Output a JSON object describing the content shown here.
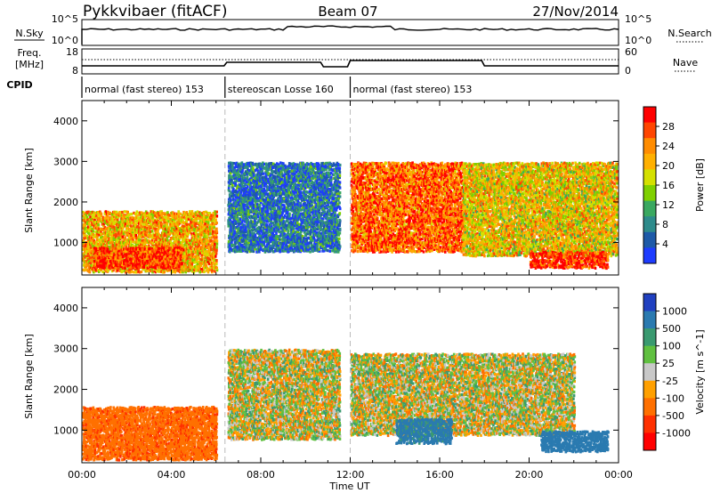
{
  "header": {
    "radar": "Pykkvibaer (fitACF)",
    "beam": "Beam 07",
    "date": "27/Nov/2014"
  },
  "status_panel": {
    "nsky_label": "N.Sky",
    "nsky_ticks": [
      "10^5",
      "10^0"
    ],
    "nsearch_label": "N.Search",
    "nsearch_ticks": [
      "10^5",
      "10^0"
    ],
    "freq_label_1": "Freq.",
    "freq_label_2": "[MHz]",
    "freq_ticks": [
      "18",
      "8"
    ],
    "nave_label": "Nave",
    "nave_ticks": [
      "60",
      "0"
    ],
    "cpid_label": "CPID",
    "cpid_segments": [
      {
        "label": "normal (fast stereo) 153",
        "start_hour": 0,
        "end_hour": 6.4
      },
      {
        "label": "stereoscan Losse 160",
        "start_hour": 6.4,
        "end_hour": 12.0
      },
      {
        "label": "normal (fast stereo) 153",
        "start_hour": 12.0,
        "end_hour": 24.0
      }
    ]
  },
  "colorbars": {
    "power": {
      "title": "Power [dB]",
      "ticks": [
        "28",
        "24",
        "20",
        "16",
        "12",
        "8",
        "4"
      ],
      "colors": [
        "#ff0000",
        "#ff4500",
        "#ff8c00",
        "#ffb000",
        "#d4e000",
        "#7fd000",
        "#3aa860",
        "#2e8b8b",
        "#1e5aa8",
        "#1e3cff"
      ]
    },
    "velocity": {
      "title": "Velocity [m s^-1]",
      "ticks": [
        "1000",
        "500",
        "100",
        "25",
        "-25",
        "-100",
        "-500",
        "-1000"
      ],
      "colors": [
        "#2040c0",
        "#2a7ab0",
        "#3a9a70",
        "#60c040",
        "#c8c8c8",
        "#ffa000",
        "#ff7000",
        "#ff3000",
        "#ff0000"
      ]
    }
  },
  "chart_data": [
    {
      "type": "heatmap",
      "name": "power",
      "ylabel": "Slant Range [km]",
      "yticks": [
        "4000",
        "3000",
        "2000",
        "1000"
      ],
      "ylim": [
        200,
        4500
      ],
      "xlim": [
        0,
        24
      ],
      "blobs": [
        {
          "t0": 0.0,
          "t1": 6.0,
          "r0": 300,
          "r1": 1800,
          "value": 20
        },
        {
          "t0": 0.5,
          "t1": 4.5,
          "r0": 400,
          "r1": 900,
          "value": 26
        },
        {
          "t0": 6.5,
          "t1": 11.5,
          "r0": 800,
          "r1": 3000,
          "value": 6
        },
        {
          "t0": 12.0,
          "t1": 17.0,
          "r0": 800,
          "r1": 3000,
          "value": 24
        },
        {
          "t0": 17.0,
          "t1": 23.9,
          "r0": 700,
          "r1": 3000,
          "value": 18
        },
        {
          "t0": 20.0,
          "t1": 23.5,
          "r0": 400,
          "r1": 800,
          "value": 27
        }
      ]
    },
    {
      "type": "heatmap",
      "name": "velocity",
      "xlabel": "Time UT",
      "ylabel": "Slant Range [km]",
      "yticks": [
        "4000",
        "3000",
        "2000",
        "1000"
      ],
      "xticks": [
        "00:00",
        "04:00",
        "08:00",
        "12:00",
        "16:00",
        "20:00",
        "00:00"
      ],
      "ylim": [
        200,
        4500
      ],
      "xlim": [
        0,
        24
      ],
      "blobs": [
        {
          "t0": 0.0,
          "t1": 6.0,
          "r0": 300,
          "r1": 1600,
          "value": -400
        },
        {
          "t0": 6.5,
          "t1": 11.5,
          "r0": 800,
          "r1": 3000,
          "value": 0
        },
        {
          "t0": 12.0,
          "t1": 22.0,
          "r0": 900,
          "r1": 2900,
          "value": 0
        },
        {
          "t0": 14.0,
          "t1": 16.5,
          "r0": 700,
          "r1": 1300,
          "value": 600
        },
        {
          "t0": 20.5,
          "t1": 23.5,
          "r0": 500,
          "r1": 1000,
          "value": 800
        }
      ]
    }
  ]
}
